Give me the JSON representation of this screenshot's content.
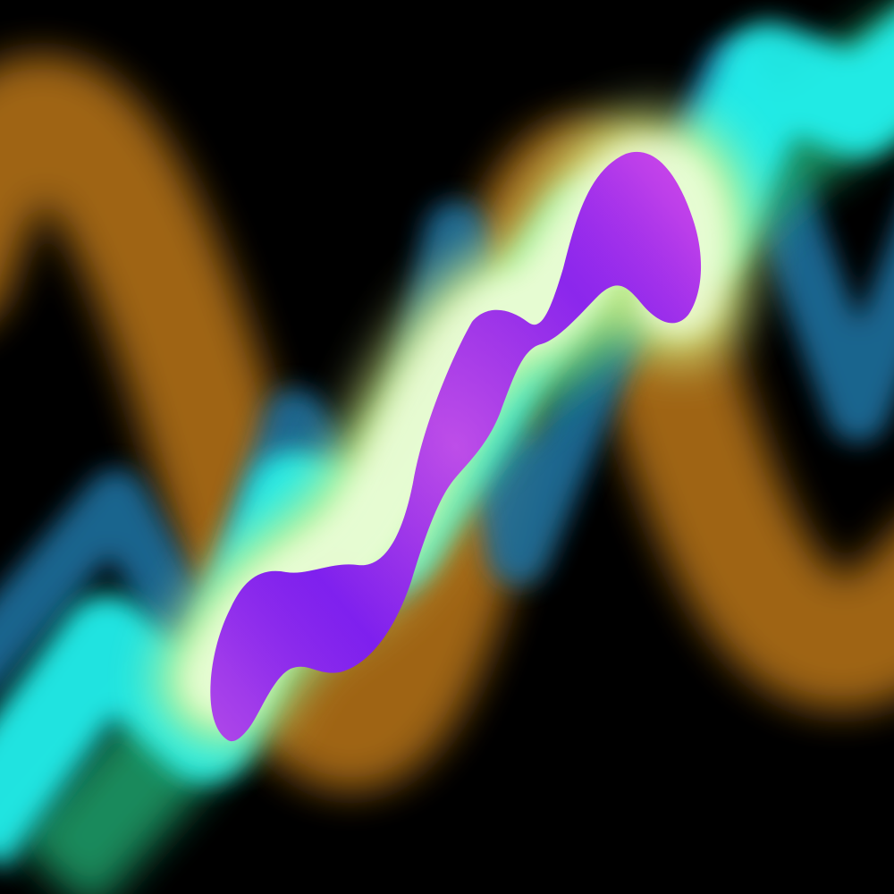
{
  "scene": {
    "background_color": "#000000",
    "colors": {
      "orange_wave": "#a86a12",
      "blue_wave": "#1a6f9e",
      "cyan_wave": "#22f0ec",
      "green_wave": "#1a9a66",
      "yellow_glow": "#d9f58a",
      "white_glow": "#ffffff",
      "blob_magenta": "#b23fe0",
      "blob_violet": "#7a1cf0",
      "blob_pink": "#d24ae8"
    },
    "elements": [
      "orange-wave-band",
      "blue-wave-band",
      "cyan-wave-band",
      "green-wave-band",
      "glow-band",
      "purple-blob"
    ]
  }
}
